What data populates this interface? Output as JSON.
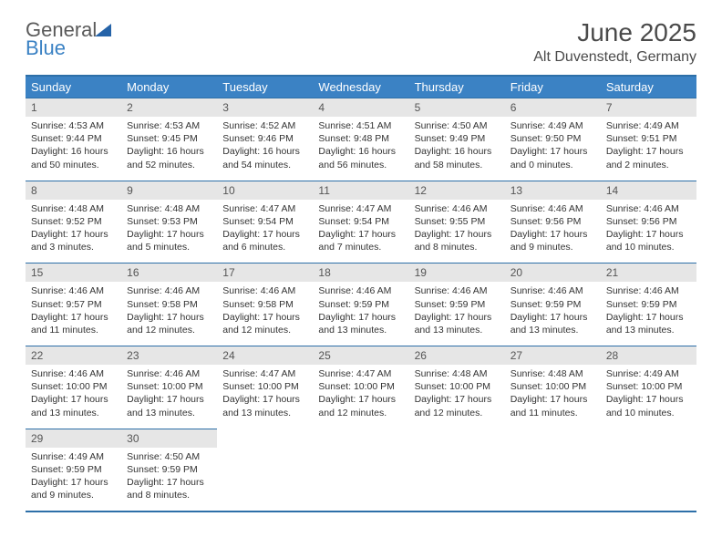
{
  "logo": {
    "text1": "General",
    "text2": "Blue"
  },
  "title": "June 2025",
  "location": "Alt Duvenstedt, Germany",
  "colors": {
    "header_bg": "#3b82c4",
    "header_text": "#ffffff",
    "border": "#2d6fa8",
    "daynum_bg": "#e6e6e6",
    "text": "#333333",
    "logo_gray": "#5a5a5a",
    "logo_blue": "#3b82c4"
  },
  "weekdays": [
    "Sunday",
    "Monday",
    "Tuesday",
    "Wednesday",
    "Thursday",
    "Friday",
    "Saturday"
  ],
  "weeks": [
    [
      {
        "n": "1",
        "sr": "4:53 AM",
        "ss": "9:44 PM",
        "dl": "16 hours and 50 minutes."
      },
      {
        "n": "2",
        "sr": "4:53 AM",
        "ss": "9:45 PM",
        "dl": "16 hours and 52 minutes."
      },
      {
        "n": "3",
        "sr": "4:52 AM",
        "ss": "9:46 PM",
        "dl": "16 hours and 54 minutes."
      },
      {
        "n": "4",
        "sr": "4:51 AM",
        "ss": "9:48 PM",
        "dl": "16 hours and 56 minutes."
      },
      {
        "n": "5",
        "sr": "4:50 AM",
        "ss": "9:49 PM",
        "dl": "16 hours and 58 minutes."
      },
      {
        "n": "6",
        "sr": "4:49 AM",
        "ss": "9:50 PM",
        "dl": "17 hours and 0 minutes."
      },
      {
        "n": "7",
        "sr": "4:49 AM",
        "ss": "9:51 PM",
        "dl": "17 hours and 2 minutes."
      }
    ],
    [
      {
        "n": "8",
        "sr": "4:48 AM",
        "ss": "9:52 PM",
        "dl": "17 hours and 3 minutes."
      },
      {
        "n": "9",
        "sr": "4:48 AM",
        "ss": "9:53 PM",
        "dl": "17 hours and 5 minutes."
      },
      {
        "n": "10",
        "sr": "4:47 AM",
        "ss": "9:54 PM",
        "dl": "17 hours and 6 minutes."
      },
      {
        "n": "11",
        "sr": "4:47 AM",
        "ss": "9:54 PM",
        "dl": "17 hours and 7 minutes."
      },
      {
        "n": "12",
        "sr": "4:46 AM",
        "ss": "9:55 PM",
        "dl": "17 hours and 8 minutes."
      },
      {
        "n": "13",
        "sr": "4:46 AM",
        "ss": "9:56 PM",
        "dl": "17 hours and 9 minutes."
      },
      {
        "n": "14",
        "sr": "4:46 AM",
        "ss": "9:56 PM",
        "dl": "17 hours and 10 minutes."
      }
    ],
    [
      {
        "n": "15",
        "sr": "4:46 AM",
        "ss": "9:57 PM",
        "dl": "17 hours and 11 minutes."
      },
      {
        "n": "16",
        "sr": "4:46 AM",
        "ss": "9:58 PM",
        "dl": "17 hours and 12 minutes."
      },
      {
        "n": "17",
        "sr": "4:46 AM",
        "ss": "9:58 PM",
        "dl": "17 hours and 12 minutes."
      },
      {
        "n": "18",
        "sr": "4:46 AM",
        "ss": "9:59 PM",
        "dl": "17 hours and 13 minutes."
      },
      {
        "n": "19",
        "sr": "4:46 AM",
        "ss": "9:59 PM",
        "dl": "17 hours and 13 minutes."
      },
      {
        "n": "20",
        "sr": "4:46 AM",
        "ss": "9:59 PM",
        "dl": "17 hours and 13 minutes."
      },
      {
        "n": "21",
        "sr": "4:46 AM",
        "ss": "9:59 PM",
        "dl": "17 hours and 13 minutes."
      }
    ],
    [
      {
        "n": "22",
        "sr": "4:46 AM",
        "ss": "10:00 PM",
        "dl": "17 hours and 13 minutes."
      },
      {
        "n": "23",
        "sr": "4:46 AM",
        "ss": "10:00 PM",
        "dl": "17 hours and 13 minutes."
      },
      {
        "n": "24",
        "sr": "4:47 AM",
        "ss": "10:00 PM",
        "dl": "17 hours and 13 minutes."
      },
      {
        "n": "25",
        "sr": "4:47 AM",
        "ss": "10:00 PM",
        "dl": "17 hours and 12 minutes."
      },
      {
        "n": "26",
        "sr": "4:48 AM",
        "ss": "10:00 PM",
        "dl": "17 hours and 12 minutes."
      },
      {
        "n": "27",
        "sr": "4:48 AM",
        "ss": "10:00 PM",
        "dl": "17 hours and 11 minutes."
      },
      {
        "n": "28",
        "sr": "4:49 AM",
        "ss": "10:00 PM",
        "dl": "17 hours and 10 minutes."
      }
    ],
    [
      {
        "n": "29",
        "sr": "4:49 AM",
        "ss": "9:59 PM",
        "dl": "17 hours and 9 minutes."
      },
      {
        "n": "30",
        "sr": "4:50 AM",
        "ss": "9:59 PM",
        "dl": "17 hours and 8 minutes."
      },
      null,
      null,
      null,
      null,
      null
    ]
  ],
  "labels": {
    "sunrise": "Sunrise:",
    "sunset": "Sunset:",
    "daylight": "Daylight:"
  }
}
